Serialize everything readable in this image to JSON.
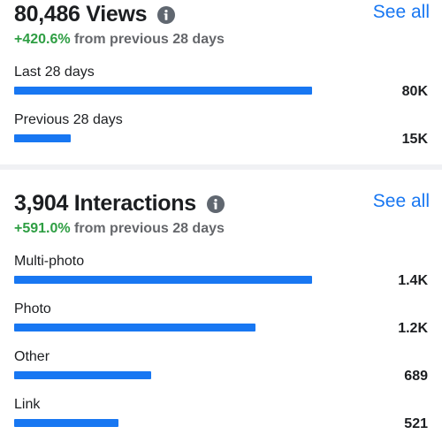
{
  "views": {
    "title": "80,486 Views",
    "see_all": "See all",
    "change_pct": "+420.6%",
    "change_text": " from previous 28 days",
    "rows": [
      {
        "label": "Last 28 days",
        "value": "80K",
        "fraction": 1.0
      },
      {
        "label": "Previous 28 days",
        "value": "15K",
        "fraction": 0.19
      }
    ]
  },
  "interactions": {
    "title": "3,904 Interactions",
    "see_all": "See all",
    "change_pct": "+591.0%",
    "change_text": " from previous 28 days",
    "rows": [
      {
        "label": "Multi-photo",
        "value": "1.4K",
        "fraction": 1.0
      },
      {
        "label": "Photo",
        "value": "1.2K",
        "fraction": 0.81
      },
      {
        "label": "Other",
        "value": "689",
        "fraction": 0.46
      },
      {
        "label": "Link",
        "value": "521",
        "fraction": 0.35
      }
    ]
  },
  "colors": {
    "accent": "#1877f2",
    "positive": "#2e9e43",
    "muted": "#65676b"
  },
  "icons": {
    "info": "info-icon"
  }
}
